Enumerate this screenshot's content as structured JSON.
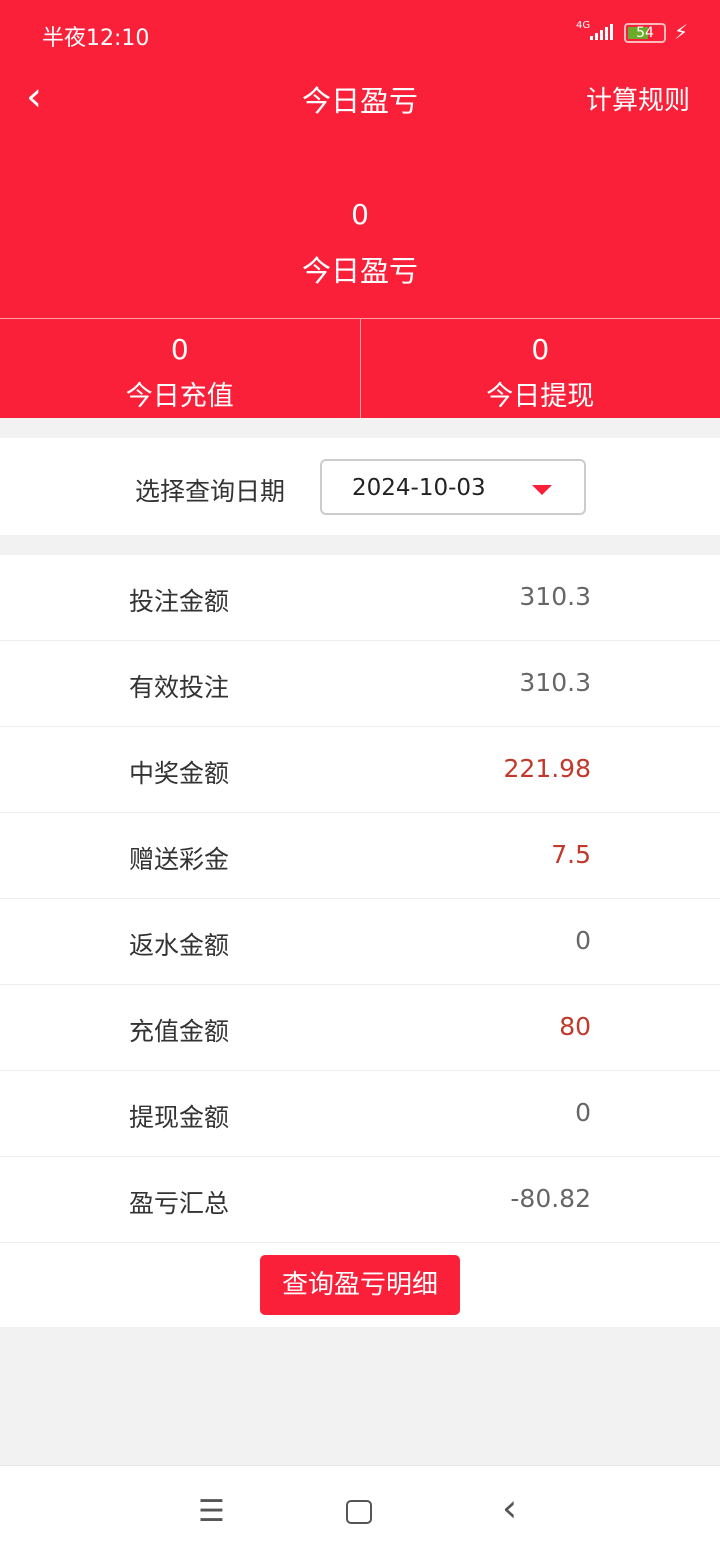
{
  "status_bar": {
    "time": "半夜12:10",
    "network": "4G",
    "battery": "54",
    "battery_level": 54,
    "icons": [
      "signal-icon",
      "battery-icon",
      "charging-icon"
    ]
  },
  "header": {
    "title": "今日盈亏",
    "rules_label": "计算规则",
    "back_icon": "chevron-left-icon"
  },
  "summary": {
    "value": "0",
    "label": "今日盈亏"
  },
  "substats": [
    {
      "value": "0",
      "label": "今日充值"
    },
    {
      "value": "0",
      "label": "今日提现"
    }
  ],
  "date_filter": {
    "label": "选择查询日期",
    "value": "2024-10-03"
  },
  "rows": [
    {
      "label": "投注金额",
      "value": "310.3",
      "highlight": false
    },
    {
      "label": "有效投注",
      "value": "310.3",
      "highlight": false
    },
    {
      "label": "中奖金额",
      "value": "221.98",
      "highlight": true
    },
    {
      "label": "赠送彩金",
      "value": "7.5",
      "highlight": true
    },
    {
      "label": "返水金额",
      "value": "0",
      "highlight": false
    },
    {
      "label": "充值金额",
      "value": "80",
      "highlight": true
    },
    {
      "label": "提现金额",
      "value": "0",
      "highlight": false
    },
    {
      "label": "盈亏汇总",
      "value": "-80.82",
      "highlight": false
    }
  ],
  "detail_button": "查询盈亏明细",
  "colors": {
    "brand": "#fb2039",
    "highlight": "#c0392b"
  }
}
